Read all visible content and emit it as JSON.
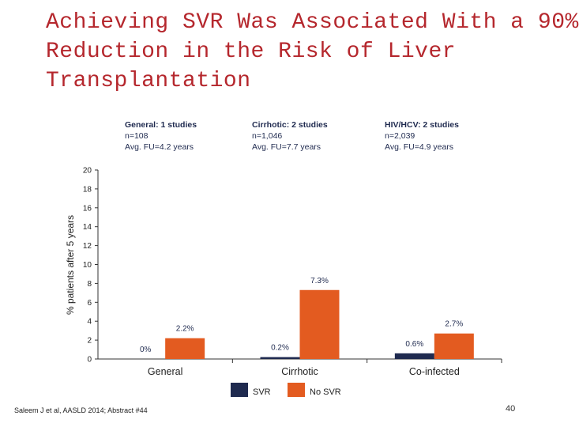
{
  "slide": {
    "title_lines": [
      "Achieving SVR Was Associated With a 90%",
      "Reduction in the Risk of Liver",
      "Transplantation"
    ],
    "footnote": "Saleem J et al, AASLD 2014; Abstract #44",
    "page_number": "40"
  },
  "study_info": [
    {
      "heading": "General: 1 studies",
      "n": "n=108",
      "fu": "Avg. FU=4.2 years"
    },
    {
      "heading": "Cirrhotic: 2 studies",
      "n": "n=1,046",
      "fu": "Avg. FU=7.7 years"
    },
    {
      "heading": "HIV/HCV: 2 studies",
      "n": "n=2,039",
      "fu": "Avg. FU=4.9 years"
    }
  ],
  "colors": {
    "svr": "#1f2a4f",
    "no_svr": "#e35b20",
    "title": "#b5272d",
    "axis": "#333333"
  },
  "chart_data": {
    "type": "bar",
    "ylabel": "% patients after 5 years",
    "xlabel": "",
    "ylim": [
      0,
      20
    ],
    "yticks": [
      0,
      2,
      4,
      6,
      8,
      10,
      12,
      14,
      16,
      18,
      20
    ],
    "categories": [
      "General",
      "Cirrhotic",
      "Co-infected"
    ],
    "series": [
      {
        "name": "SVR",
        "values": [
          0,
          0.2,
          0.6
        ],
        "labels": [
          "0%",
          "0.2%",
          "0.6%"
        ]
      },
      {
        "name": "No SVR",
        "values": [
          2.2,
          7.3,
          2.7
        ],
        "labels": [
          "2.2%",
          "7.3%",
          "2.7%"
        ]
      }
    ],
    "legend": [
      "SVR",
      "No SVR"
    ],
    "legend_position": "bottom",
    "grid": false
  }
}
